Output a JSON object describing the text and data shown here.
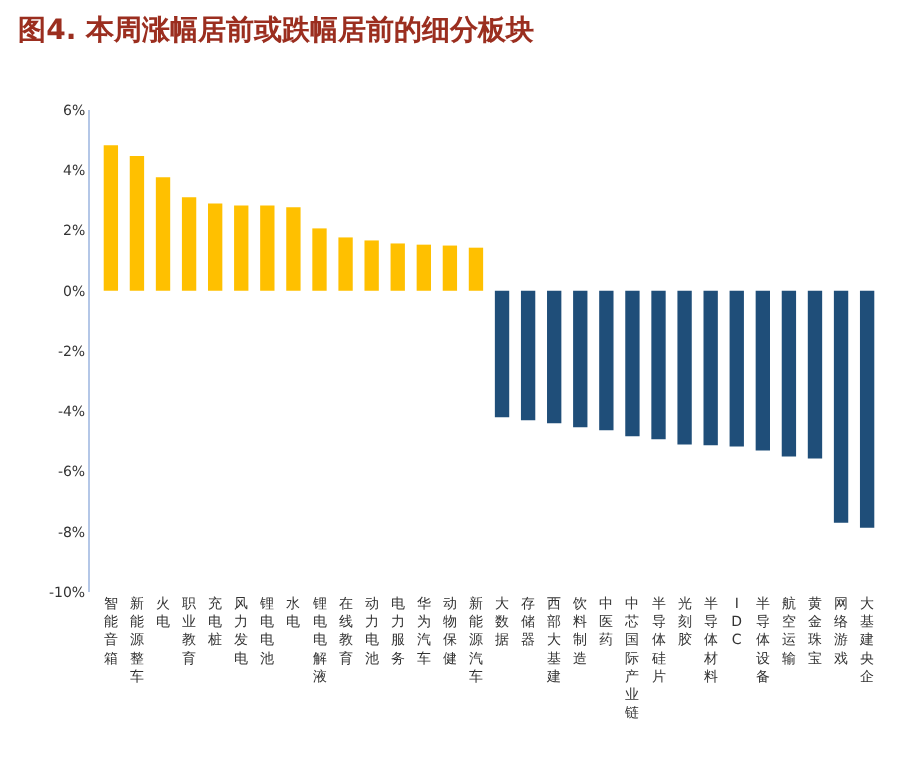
{
  "chart_data": {
    "type": "bar",
    "title": "图4. 本周涨幅居前或跌幅居前的细分板块",
    "categories": [
      "智能音箱",
      "新能源整车",
      "火电",
      "职业教育",
      "充电桩",
      "风力发电",
      "锂电电池",
      "水电",
      "锂电电解液",
      "在线教育",
      "动力电池",
      "电力服务",
      "华为汽车",
      "动物保健",
      "新能源汽车",
      "大数据",
      "存储器",
      "西部大基建",
      "饮料制造",
      "中医药",
      "中芯国际产业链",
      "半导体硅片",
      "光刻胶",
      "半导体材料",
      "IDC",
      "半导体设备",
      "航空运输",
      "黄金珠宝",
      "网络游戏",
      "大基建央企"
    ],
    "values": [
      4.83,
      4.47,
      3.77,
      3.1,
      2.9,
      2.83,
      2.83,
      2.77,
      2.07,
      1.77,
      1.67,
      1.57,
      1.53,
      1.5,
      1.43,
      -4.2,
      -4.3,
      -4.4,
      -4.53,
      -4.63,
      -4.83,
      -4.93,
      -5.1,
      -5.13,
      -5.17,
      -5.3,
      -5.5,
      -5.57,
      -7.7,
      -7.87
    ],
    "colors": [
      "#ffc000",
      "#ffc000",
      "#ffc000",
      "#ffc000",
      "#ffc000",
      "#ffc000",
      "#ffc000",
      "#ffc000",
      "#ffc000",
      "#ffc000",
      "#ffc000",
      "#ffc000",
      "#ffc000",
      "#ffc000",
      "#ffc000",
      "#1f4e79",
      "#1f4e79",
      "#1f4e79",
      "#1f4e79",
      "#1f4e79",
      "#1f4e79",
      "#1f4e79",
      "#1f4e79",
      "#1f4e79",
      "#1f4e79",
      "#1f4e79",
      "#1f4e79",
      "#1f4e79",
      "#1f4e79",
      "#1f4e79"
    ],
    "ylim": [
      -10,
      6
    ],
    "yticks": [
      {
        "value": -10,
        "label": "-10%"
      },
      {
        "value": -8,
        "label": "-8%"
      },
      {
        "value": -6,
        "label": "-6%"
      },
      {
        "value": -4,
        "label": "-4%"
      },
      {
        "value": -2,
        "label": "-2%"
      },
      {
        "value": 0,
        "label": "0%"
      },
      {
        "value": 2,
        "label": "2%"
      },
      {
        "value": 4,
        "label": "4%"
      },
      {
        "value": 6,
        "label": "6%"
      }
    ]
  }
}
